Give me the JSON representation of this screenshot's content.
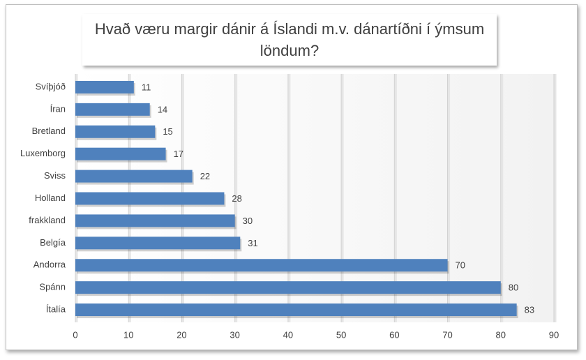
{
  "chart_data": {
    "type": "bar",
    "orientation": "horizontal",
    "title": "Hvað væru margir dánir á Íslandi m.v. dánartíðni í ýmsum löndum?",
    "categories": [
      "Svíþjóð",
      "Íran",
      "Bretland",
      "Luxemborg",
      "Sviss",
      "Holland",
      "frakkland",
      "Belgía",
      "Andorra",
      "Spánn",
      "Ítalía"
    ],
    "values": [
      11,
      14,
      15,
      17,
      22,
      28,
      30,
      31,
      70,
      80,
      83
    ],
    "color": "#4f81bd",
    "xlim": [
      0,
      90
    ],
    "xticks": [
      0,
      10,
      20,
      30,
      40,
      50,
      60,
      70,
      80,
      90
    ],
    "grid": true
  }
}
